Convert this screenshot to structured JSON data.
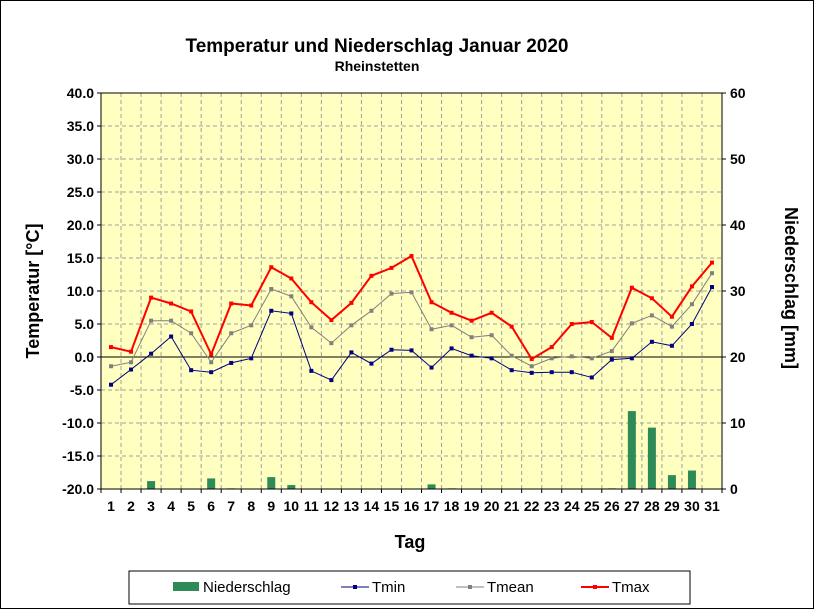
{
  "chart_data": {
    "type": "line",
    "title": "Temperatur und Niederschlag  Januar 2020",
    "subtitle": "Rheinstetten",
    "xlabel": "Tag",
    "ylabel_left": "Temperatur [°C]",
    "ylabel_right": "Niederschlag [mm]",
    "x": [
      1,
      2,
      3,
      4,
      5,
      6,
      7,
      8,
      9,
      10,
      11,
      12,
      13,
      14,
      15,
      16,
      17,
      18,
      19,
      20,
      21,
      22,
      23,
      24,
      25,
      26,
      27,
      28,
      29,
      30,
      31
    ],
    "ylim_left": [
      -20,
      40
    ],
    "ylim_right": [
      0,
      60
    ],
    "yticks_left": [
      "-20.0",
      "-15.0",
      "-10.0",
      "-5.0",
      "0.0",
      "5.0",
      "10.0",
      "15.0",
      "20.0",
      "25.0",
      "30.0",
      "35.0",
      "40.0"
    ],
    "yticks_right": [
      "0",
      "10",
      "20",
      "30",
      "40",
      "50",
      "60"
    ],
    "grid": true,
    "legend_position": "bottom",
    "colors": {
      "plot_bg": "#ffffc0",
      "grid": "#a0a0a0",
      "niederschlag": "#2e8b57",
      "tmin": "#000080",
      "tmean": "#808080",
      "tmax": "#ff0000"
    },
    "bars": {
      "name": "Niederschlag",
      "axis": "right",
      "values": [
        0,
        0,
        1.2,
        0,
        0,
        1.6,
        0.1,
        0,
        1.8,
        0.6,
        0,
        0,
        0,
        0,
        0,
        0,
        0.7,
        0.1,
        0,
        0,
        0,
        0,
        0,
        0,
        0,
        0.1,
        11.8,
        9.3,
        2.1,
        2.8,
        0
      ]
    },
    "series": [
      {
        "name": "Tmin",
        "axis": "left",
        "values": [
          -4.2,
          -1.9,
          0.5,
          3.1,
          -2.0,
          -2.3,
          -0.9,
          -0.2,
          7.0,
          6.6,
          -2.1,
          -3.5,
          0.7,
          -1.0,
          1.1,
          1.0,
          -1.6,
          1.3,
          0.2,
          -0.2,
          -2.0,
          -2.4,
          -2.3,
          -2.3,
          -3.1,
          -0.4,
          -0.2,
          2.3,
          1.7,
          5.0,
          10.6
        ]
      },
      {
        "name": "Tmean",
        "axis": "left",
        "values": [
          -1.4,
          -0.8,
          5.5,
          5.5,
          3.6,
          -0.8,
          3.6,
          4.8,
          10.3,
          9.2,
          4.5,
          2.1,
          4.8,
          7.0,
          9.6,
          9.8,
          4.2,
          4.8,
          3.0,
          3.3,
          0.2,
          -1.4,
          -0.2,
          0.1,
          -0.2,
          0.9,
          5.1,
          6.3,
          4.6,
          8.0,
          12.7
        ]
      },
      {
        "name": "Tmax",
        "axis": "left",
        "values": [
          1.5,
          0.8,
          9.0,
          8.1,
          6.9,
          0.4,
          8.1,
          7.8,
          13.6,
          11.9,
          8.3,
          5.6,
          8.2,
          12.3,
          13.5,
          15.3,
          8.3,
          6.7,
          5.5,
          6.7,
          4.6,
          -0.3,
          1.5,
          5.0,
          5.3,
          2.9,
          10.5,
          8.9,
          6.1,
          10.7,
          14.3
        ]
      }
    ],
    "legend": [
      "Niederschlag",
      "Tmin",
      "Tmean",
      "Tmax"
    ]
  }
}
